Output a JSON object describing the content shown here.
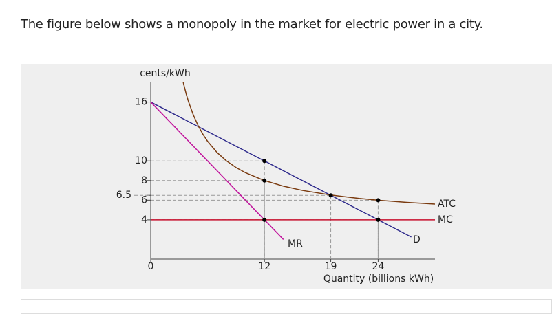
{
  "intro": "The figure below shows a monopoly in the market for electric power in a city.",
  "chart_data": {
    "type": "line",
    "y_label": "cents/kWh",
    "x_label": "Quantity (billions kWh)",
    "xlim": [
      0,
      30
    ],
    "ylim": [
      0,
      18
    ],
    "xticks": [
      0,
      12,
      19,
      24
    ],
    "yticks": [
      4,
      6,
      6.5,
      8,
      10,
      16
    ],
    "series": [
      {
        "name": "D",
        "color": "#2e2a8c",
        "x": [
          0,
          27.5
        ],
        "values": [
          16,
          2.25
        ]
      },
      {
        "name": "MR",
        "color": "#c0129b",
        "x": [
          0,
          14
        ],
        "values": [
          16,
          2
        ]
      },
      {
        "name": "MC",
        "color": "#c8102e",
        "x": [
          0,
          30
        ],
        "values": [
          4,
          4
        ]
      },
      {
        "name": "ATC",
        "color": "#7a3b10",
        "x": [
          3.43,
          3.75,
          4,
          4.5,
          5,
          5.5,
          6,
          7,
          8,
          9,
          10,
          12,
          14,
          16,
          19,
          22,
          24,
          27,
          30
        ],
        "values": [
          18,
          16.8,
          16,
          14.67,
          13.6,
          12.73,
          12,
          10.86,
          10,
          9.33,
          8.8,
          8,
          7.43,
          7,
          6.53,
          6.18,
          6,
          5.78,
          5.6
        ]
      }
    ],
    "points": {
      "x": [
        12,
        12,
        12,
        19,
        24,
        24
      ],
      "values": [
        10,
        8,
        4,
        6.5,
        6,
        4
      ]
    }
  }
}
